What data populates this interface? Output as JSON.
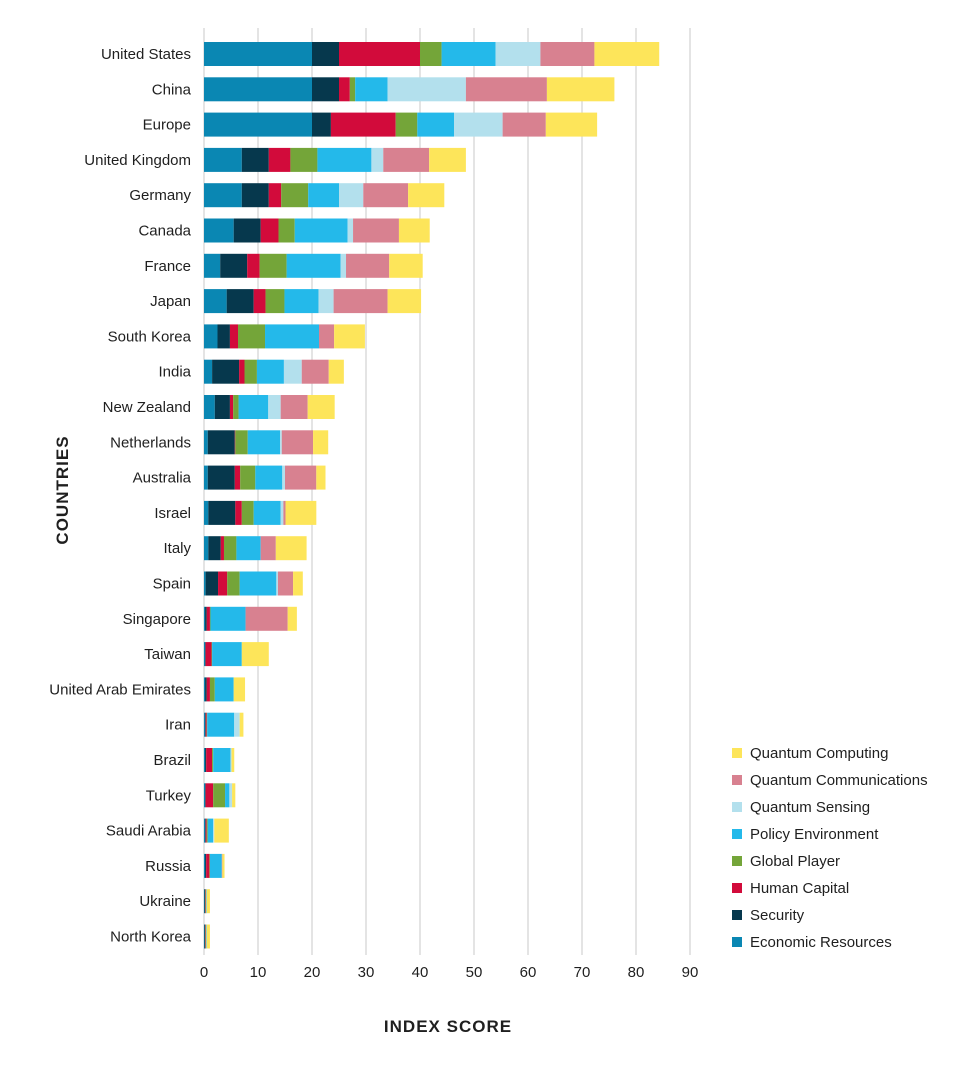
{
  "chart_data": {
    "type": "bar",
    "orientation": "horizontal",
    "stacked": true,
    "title": "",
    "xlabel": "INDEX SCORE",
    "ylabel": "COUNTRIES",
    "xlim": [
      0,
      90
    ],
    "xticks": [
      0,
      10,
      20,
      30,
      40,
      50,
      60,
      70,
      80,
      90
    ],
    "grid": "vertical",
    "legend_position": "bottom-right",
    "categories": [
      "United States",
      "China",
      "Europe",
      "United Kingdom",
      "Germany",
      "Canada",
      "France",
      "Japan",
      "South Korea",
      "India",
      "New Zealand",
      "Netherlands",
      "Australia",
      "Israel",
      "Italy",
      "Spain",
      "Singapore",
      "Taiwan",
      "United Arab Emirates",
      "Iran",
      "Brazil",
      "Turkey",
      "Saudi Arabia",
      "Russia",
      "Ukraine",
      "North Korea"
    ],
    "series": [
      {
        "name": "Economic Resources",
        "color": "#0a87b3",
        "values": [
          20,
          20,
          20,
          7,
          7,
          5.5,
          3,
          4.2,
          2.5,
          1.5,
          2,
          0.7,
          0.7,
          0.8,
          0.8,
          0.3,
          0.2,
          0.2,
          0.2,
          0.2,
          0.2,
          0.2,
          0.2,
          0.2,
          0.1,
          0.1
        ]
      },
      {
        "name": "Security",
        "color": "#06384d",
        "values": [
          5,
          5,
          3.5,
          5,
          5,
          5,
          5,
          5,
          2.3,
          5,
          2.8,
          5,
          5,
          5,
          2.3,
          2.3,
          0.3,
          0.1,
          0.3,
          0.1,
          0.2,
          0.1,
          0.1,
          0.2,
          0.1,
          0.1
        ]
      },
      {
        "name": "Human Capital",
        "color": "#d20b3b",
        "values": [
          15,
          2,
          12,
          4,
          2.3,
          3.3,
          2.3,
          2.2,
          1.5,
          1,
          0.6,
          0.1,
          1,
          1.2,
          0.6,
          1.7,
          0.6,
          1.1,
          0.6,
          0.2,
          1.1,
          1.4,
          0.2,
          0.6,
          0.1,
          0.1
        ]
      },
      {
        "name": "Global Player",
        "color": "#74a539",
        "values": [
          4,
          1,
          4,
          5,
          5,
          3,
          5,
          3.5,
          5,
          2.3,
          1,
          2.3,
          2.8,
          2.2,
          2.3,
          2.3,
          0.1,
          0.1,
          0.9,
          0.1,
          0.2,
          2.2,
          0.2,
          0.1,
          0.1,
          0.1
        ]
      },
      {
        "name": "Policy Environment",
        "color": "#24b9ea",
        "values": [
          10,
          6,
          6.8,
          10,
          5.7,
          9.8,
          10,
          6.3,
          10,
          5,
          5.5,
          6,
          5,
          5,
          4.5,
          6.8,
          6.5,
          5.5,
          3.5,
          5,
          3.2,
          0.8,
          1,
          2.2,
          0.1,
          0.1
        ]
      },
      {
        "name": "Quantum Sensing",
        "color": "#b3e0ed",
        "values": [
          8.3,
          14.5,
          9,
          2.2,
          4.5,
          1,
          1,
          2.8,
          0,
          3.3,
          2.3,
          0.3,
          0.5,
          0.5,
          0,
          0.3,
          0,
          0,
          0,
          1,
          0.2,
          0.5,
          0.2,
          0,
          0,
          0
        ]
      },
      {
        "name": "Quantum Communications",
        "color": "#d88190",
        "values": [
          10,
          15,
          8,
          8.5,
          8.3,
          8.5,
          8,
          10,
          2.8,
          5,
          5,
          5.8,
          5.8,
          0.4,
          2.8,
          2.8,
          7.8,
          0,
          0,
          0,
          0,
          0,
          0,
          0.1,
          0,
          0
        ]
      },
      {
        "name": "Quantum Computing",
        "color": "#fde55a",
        "values": [
          12,
          12.5,
          9.5,
          6.8,
          6.7,
          5.7,
          6.2,
          6.2,
          5.7,
          2.8,
          5,
          2.8,
          1.7,
          5.7,
          5.7,
          1.8,
          1.7,
          5,
          2.1,
          0.7,
          0.5,
          0.6,
          2.7,
          0.4,
          0.6,
          0.6
        ]
      }
    ]
  }
}
